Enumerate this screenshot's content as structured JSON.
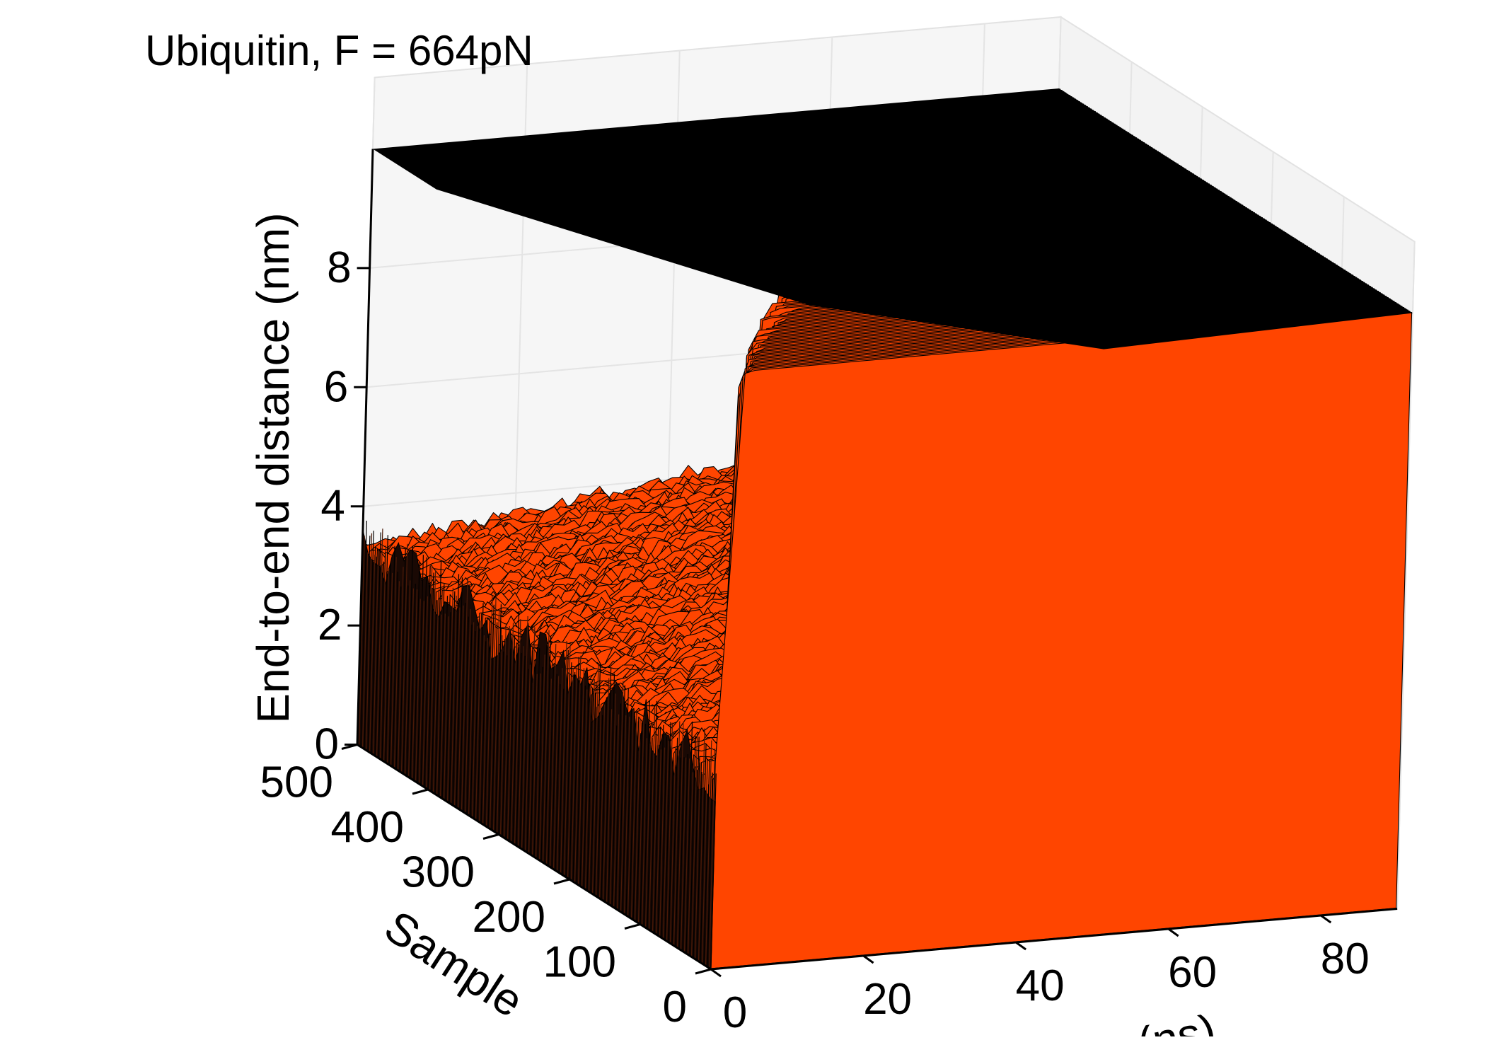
{
  "chart_data": {
    "type": "area",
    "subtype": "3d-waterfall",
    "title": "Ubiquitin, F =  664pN",
    "xlabel": "Time (ns)",
    "ylabel": "Sample",
    "zlabel": "End-to-end distance (nm)",
    "xlim": [
      0,
      90
    ],
    "ylim": [
      0,
      500
    ],
    "zlim": [
      0,
      10
    ],
    "x_ticks": [
      "0",
      "20",
      "40",
      "60",
      "80"
    ],
    "y_ticks": [
      "0",
      "100",
      "200",
      "300",
      "400",
      "500"
    ],
    "z_ticks": [
      "0",
      "2",
      "4",
      "6",
      "8"
    ],
    "n_samples": 500,
    "series_summary": {
      "initial_distance_nm": 3.3,
      "intermediate_plateau_nm": [
        3.3,
        4.6
      ],
      "final_unfolded_distance_nm": 10.0,
      "unfolding_time_range_ns": [
        1,
        88
      ]
    },
    "grid": true,
    "face_colors": {
      "front": "#ff4500",
      "side": "#1a0904",
      "top": "#000000"
    },
    "line_color": "#000000"
  }
}
